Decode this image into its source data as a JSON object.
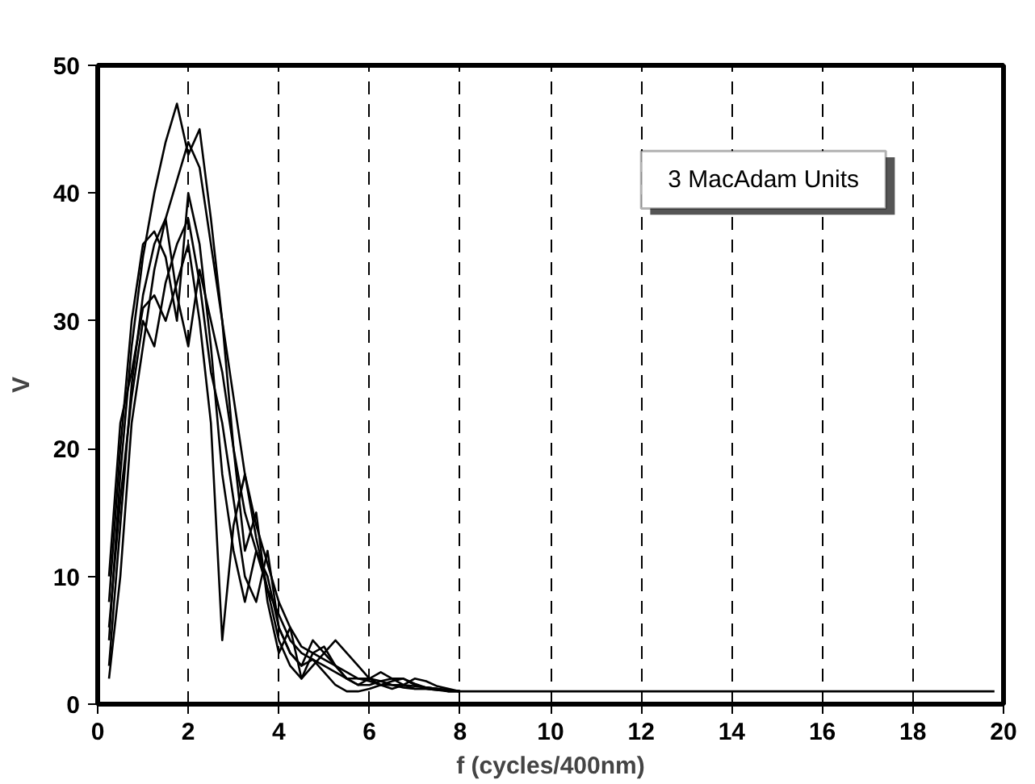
{
  "chart_data": {
    "type": "line",
    "xlabel": "f (cycles/400nm)",
    "ylabel": "V",
    "xlim": [
      0,
      20
    ],
    "ylim": [
      0,
      50
    ],
    "xticks": [
      0,
      2,
      4,
      6,
      8,
      10,
      12,
      14,
      16,
      18,
      20
    ],
    "yticks": [
      0,
      10,
      20,
      30,
      40,
      50
    ],
    "grid": "x",
    "marker": "none",
    "line_style": "solid",
    "annotations": [
      "3 MacAdam Units"
    ],
    "x": [
      0.25,
      0.5,
      0.75,
      1,
      1.25,
      1.5,
      1.75,
      2,
      2.25,
      2.5,
      2.75,
      3,
      3.25,
      3.5,
      3.75,
      4,
      4.25,
      4.5,
      4.75,
      5,
      5.25,
      5.5,
      5.75,
      6,
      6.25,
      6.5,
      6.75,
      7,
      7.25,
      7.5,
      7.75,
      8
    ],
    "series": [
      {
        "color": "#000000",
        "x": [
          0.25,
          0.5,
          0.75,
          1,
          1.25,
          1.5,
          1.75,
          2,
          2.25,
          2.5,
          2.75,
          3,
          3.25,
          3.5,
          3.75,
          4,
          4.25,
          4.5,
          4.75,
          5,
          5.25,
          5.5,
          5.75,
          6,
          6.25,
          6.5,
          6.75,
          7,
          7.25,
          7.5,
          7.75,
          8,
          19.8
        ],
        "values": [
          5,
          18,
          28,
          35,
          40,
          44,
          47,
          43,
          45,
          38,
          30,
          24,
          18,
          14,
          11,
          8,
          6,
          4.5,
          4,
          3.5,
          3,
          2.5,
          2,
          2,
          1.8,
          1.5,
          1.5,
          1.4,
          1.3,
          1.2,
          1.1,
          1,
          1
        ]
      },
      {
        "color": "#000000",
        "values": [
          3,
          14,
          25,
          32,
          36,
          38,
          41,
          44,
          42,
          36,
          30,
          20,
          15,
          12,
          9,
          7,
          5,
          4,
          3.5,
          3,
          2.5,
          2,
          2,
          1.8,
          1.5,
          1.5,
          1.3,
          1.2,
          1.2,
          1.1,
          1.1,
          1
        ]
      },
      {
        "color": "#000000",
        "values": [
          8,
          20,
          30,
          36,
          37,
          35,
          30,
          40,
          36,
          28,
          18,
          12,
          8,
          12,
          10,
          6,
          4,
          3,
          5,
          4,
          3,
          2,
          1.5,
          2,
          2.5,
          2,
          1.5,
          1.2,
          1.2,
          1.1,
          1,
          1
        ]
      },
      {
        "color": "#000000",
        "values": [
          10,
          22,
          26,
          31,
          32,
          30,
          33,
          36,
          30,
          22,
          5,
          14,
          18,
          13,
          9,
          5,
          3,
          2,
          4,
          4.5,
          3,
          2,
          1.5,
          1.5,
          1.8,
          2,
          2,
          1.5,
          1.3,
          1.2,
          1.1,
          1
        ]
      },
      {
        "color": "#000000",
        "values": [
          2,
          10,
          22,
          28,
          34,
          38,
          32,
          28,
          34,
          30,
          26,
          20,
          12,
          15,
          8,
          4,
          6,
          2,
          3,
          4,
          5,
          4,
          3,
          2,
          1.5,
          1.2,
          1.5,
          2,
          1.8,
          1.4,
          1.2,
          1
        ]
      },
      {
        "color": "#000000",
        "values": [
          6,
          16,
          24,
          30,
          28,
          33,
          36,
          38,
          33,
          26,
          22,
          16,
          10,
          8,
          12,
          6,
          4,
          3,
          3.5,
          2.5,
          1.5,
          1,
          1,
          1.2,
          1.5,
          1.8,
          2,
          1.6,
          1.3,
          1.2,
          1,
          1
        ]
      }
    ]
  }
}
